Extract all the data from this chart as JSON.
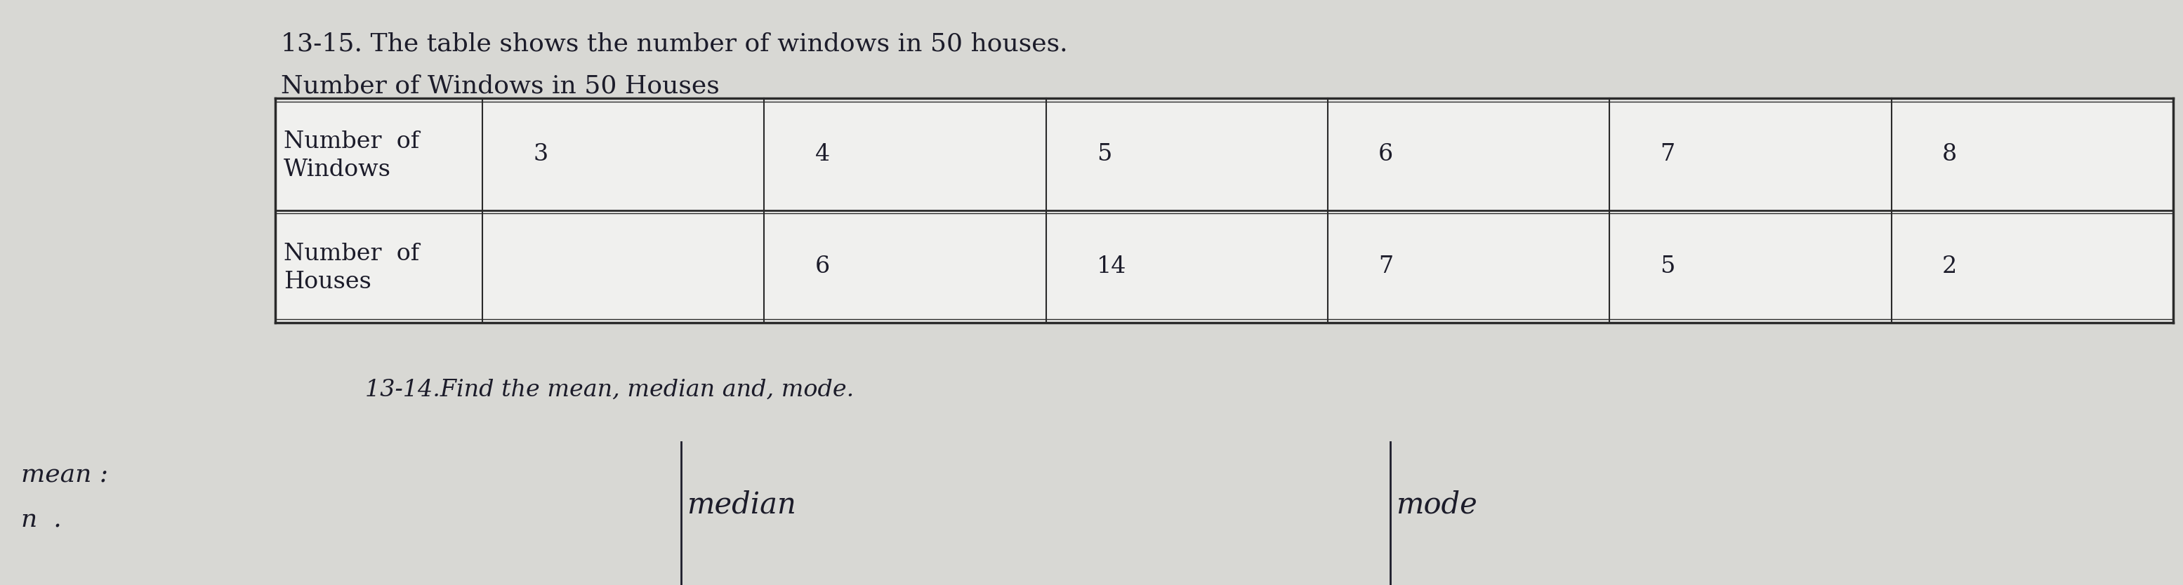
{
  "title1": "13-15. The table shows the number of windows in 50 houses.",
  "title2": "Number of Windows in 50 Houses",
  "row1_label_line1": "Number  of",
  "row1_label_line2": "Windows",
  "row2_label_line1": "Number  of",
  "row2_label_line2": "Houses",
  "col_values_windows": [
    "3",
    "4",
    "5",
    "6",
    "7",
    "8"
  ],
  "col_values_houses": [
    "",
    "6",
    "14",
    "7",
    "5",
    "2"
  ],
  "subtitle": "13-14.Find the mean, median and, mode.",
  "label_mean": "mean :",
  "label_n": "n  .",
  "label_median": "median",
  "label_mode": "mode",
  "bg_color": "#d8d8d4",
  "table_bg": "#f0f0ee",
  "font_color": "#1c1c2a",
  "font_size_title": 26,
  "font_size_table": 24,
  "font_size_sub": 24,
  "font_size_hand": 26
}
